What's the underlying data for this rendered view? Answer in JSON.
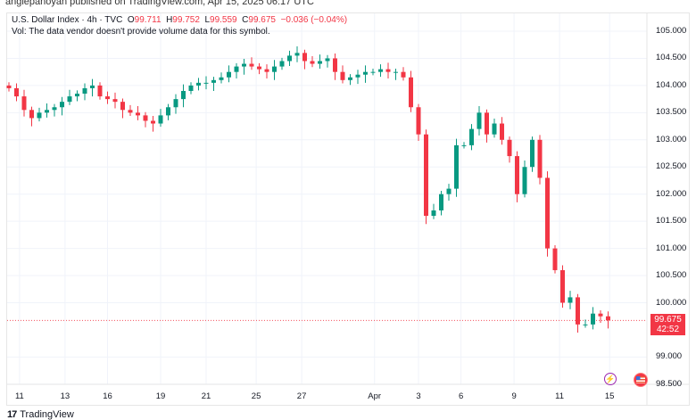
{
  "publisher_line": "angiepanoyan published on TradingView.com, Apr 15, 2025 06:17 UTC",
  "legend": {
    "symbol": "U.S. Dollar Index · 4h · TVC",
    "o_label": "O",
    "o": "99.711",
    "h_label": "H",
    "h": "99.752",
    "l_label": "L",
    "l": "99.559",
    "c_label": "C",
    "c": "99.675",
    "change": "−0.036 (−0.04%)",
    "vol_note": "Vol: The data vendor doesn't provide volume data for this symbol."
  },
  "price_label": {
    "price": "99.675",
    "countdown": "42:52"
  },
  "icons": {
    "events": "lightning-icon",
    "country": "us-flag-icon"
  },
  "brand": "TradingView",
  "colors": {
    "up": "#089981",
    "down": "#f23645",
    "grid": "#f0f3fa"
  },
  "chart_data": {
    "type": "candlestick",
    "title": "U.S. Dollar Index · 4h · TVC",
    "ylim": [
      98.5,
      105.0
    ],
    "yticks": [
      "105.000",
      "104.500",
      "104.000",
      "103.500",
      "103.000",
      "102.500",
      "102.000",
      "101.500",
      "101.000",
      "100.500",
      "100.000",
      "99.000",
      "98.500"
    ],
    "ytick_values": [
      105,
      104.5,
      104,
      103.5,
      103,
      102.5,
      102,
      101.5,
      101,
      100.5,
      100,
      99,
      98.5
    ],
    "xticks": [
      "11",
      "13",
      "16",
      "19",
      "21",
      "25",
      "27",
      "Apr",
      "3",
      "6",
      "9",
      "11",
      "15"
    ],
    "xtick_bar_index": [
      1.4,
      7.4,
      13,
      20,
      26,
      32.6,
      38.6,
      48.2,
      54,
      59.6,
      66.6,
      72.6,
      79.2
    ],
    "current_price": 99.675,
    "close": [
      103.95,
      103.8,
      103.55,
      103.4,
      103.5,
      103.55,
      103.6,
      103.7,
      103.8,
      103.85,
      103.95,
      104.0,
      103.8,
      103.75,
      103.7,
      103.55,
      103.5,
      103.45,
      103.35,
      103.3,
      103.45,
      103.6,
      103.75,
      103.9,
      104.0,
      104.05,
      104.05,
      104.1,
      104.15,
      104.25,
      104.35,
      104.4,
      104.35,
      104.3,
      104.25,
      104.35,
      104.45,
      104.55,
      104.6,
      104.45,
      104.4,
      104.45,
      104.5,
      104.25,
      104.1,
      104.15,
      104.2,
      104.25,
      104.25,
      104.3,
      104.25,
      104.25,
      104.15,
      103.6,
      103.1,
      101.6,
      101.7,
      102.0,
      102.1,
      102.9,
      102.9,
      103.2,
      103.5,
      103.1,
      103.3,
      103.0,
      102.7,
      102.0,
      102.5,
      103.0,
      102.3,
      101.0,
      100.6,
      100.0,
      100.1,
      99.6,
      99.6,
      99.8,
      99.75,
      99.675
    ]
  }
}
